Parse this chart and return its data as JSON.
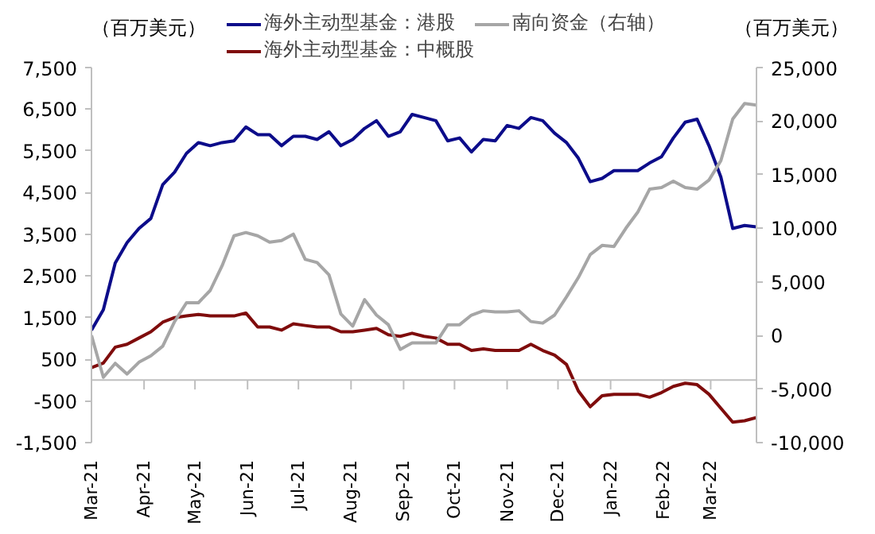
{
  "chart_data": {
    "type": "line",
    "ylabel": "（百万美元）",
    "y2label": "（百万美元）",
    "x": [
      "2021-03-01",
      "2021-03-08",
      "2021-03-15",
      "2021-03-22",
      "2021-03-29",
      "2021-04-05",
      "2021-04-12",
      "2021-04-19",
      "2021-04-26",
      "2021-05-03",
      "2021-05-10",
      "2021-05-17",
      "2021-05-24",
      "2021-05-31",
      "2021-06-07",
      "2021-06-14",
      "2021-06-21",
      "2021-06-28",
      "2021-07-05",
      "2021-07-12",
      "2021-07-19",
      "2021-07-26",
      "2021-08-02",
      "2021-08-09",
      "2021-08-16",
      "2021-08-23",
      "2021-08-30",
      "2021-09-06",
      "2021-09-13",
      "2021-09-20",
      "2021-09-27",
      "2021-10-04",
      "2021-10-11",
      "2021-10-18",
      "2021-10-25",
      "2021-11-01",
      "2021-11-08",
      "2021-11-15",
      "2021-11-22",
      "2021-11-29",
      "2021-12-06",
      "2021-12-13",
      "2021-12-20",
      "2021-12-27",
      "2022-01-03",
      "2022-01-10",
      "2022-01-17",
      "2022-01-24",
      "2022-01-31",
      "2022-02-07",
      "2022-02-14",
      "2022-02-21",
      "2022-02-28",
      "2022-03-07",
      "2022-03-14",
      "2022-03-21",
      "2022-03-28"
    ],
    "series": [
      {
        "name": "海外主动型基金：港股",
        "color": "#0c0c8a",
        "values": [
          1200,
          1690,
          2810,
          3300,
          3640,
          3880,
          4690,
          4990,
          5440,
          5700,
          5625,
          5700,
          5740,
          6075,
          5890,
          5890,
          5625,
          5850,
          5850,
          5775,
          5960,
          5625,
          5775,
          6040,
          6225,
          5850,
          5960,
          6375,
          6300,
          6225,
          5740,
          5810,
          5475,
          5775,
          5740,
          6110,
          6040,
          6300,
          6225,
          5925,
          5700,
          5325,
          4760,
          4840,
          5025,
          5025,
          5025,
          5210,
          5360,
          5810,
          6190,
          6260,
          5625,
          4875,
          3640,
          3710,
          3675
        ]
      },
      {
        "name": "海外主动型基金：中概股",
        "color": "#7f0c0c",
        "values": [
          300,
          410,
          790,
          860,
          1010,
          1160,
          1390,
          1500,
          1540,
          1575,
          1540,
          1540,
          1540,
          1610,
          1275,
          1275,
          1200,
          1350,
          1310,
          1275,
          1275,
          1160,
          1160,
          1200,
          1240,
          1090,
          1050,
          1125,
          1050,
          1010,
          860,
          860,
          710,
          750,
          710,
          710,
          710,
          860,
          710,
          600,
          375,
          -260,
          -640,
          -375,
          -340,
          -340,
          -340,
          -410,
          -300,
          -150,
          -75,
          -110,
          -340,
          -675,
          -1010,
          -975,
          -900
        ]
      },
      {
        "name": "南向资金（右轴）",
        "color": "#a6a6a6",
        "axis": "y2",
        "values": [
          0,
          -3900,
          -2600,
          -3600,
          -2500,
          -1900,
          -1000,
          1300,
          3050,
          3050,
          4200,
          6500,
          9300,
          9600,
          9300,
          8700,
          8850,
          9450,
          7100,
          6800,
          5650,
          2000,
          870,
          3340,
          1900,
          1000,
          -1300,
          -700,
          -700,
          -700,
          1000,
          1000,
          1900,
          2300,
          2200,
          2200,
          2300,
          1300,
          1150,
          1900,
          3600,
          5400,
          7550,
          8400,
          8300,
          10000,
          11500,
          13650,
          13800,
          14400,
          13800,
          13650,
          14500,
          16300,
          20200,
          21650,
          21500
        ]
      }
    ],
    "xlim": [
      "2021-03-01",
      "2022-03-28"
    ],
    "xticks": [
      {
        "value": "2021-03-01",
        "label": "Mar-21"
      },
      {
        "value": "2021-04-01",
        "label": "Apr-21"
      },
      {
        "value": "2021-05-01",
        "label": "May-21"
      },
      {
        "value": "2021-06-01",
        "label": "Jun-21"
      },
      {
        "value": "2021-07-01",
        "label": "Jul-21"
      },
      {
        "value": "2021-08-01",
        "label": "Aug-21"
      },
      {
        "value": "2021-09-01",
        "label": "Sep-21"
      },
      {
        "value": "2021-10-01",
        "label": "Oct-21"
      },
      {
        "value": "2021-11-01",
        "label": "Nov-21"
      },
      {
        "value": "2021-12-01",
        "label": "Dec-21"
      },
      {
        "value": "2022-01-01",
        "label": "Jan-22"
      },
      {
        "value": "2022-02-01",
        "label": "Feb-22"
      },
      {
        "value": "2022-03-01",
        "label": "Mar-22"
      }
    ],
    "ylim": [
      -1500,
      7500
    ],
    "yticks": [
      {
        "value": -1500,
        "label": "-1,500"
      },
      {
        "value": -500,
        "label": "-500"
      },
      {
        "value": 500,
        "label": "500"
      },
      {
        "value": 1500,
        "label": "1,500"
      },
      {
        "value": 2500,
        "label": "2,500"
      },
      {
        "value": 3500,
        "label": "3,500"
      },
      {
        "value": 4500,
        "label": "4,500"
      },
      {
        "value": 5500,
        "label": "5,500"
      },
      {
        "value": 6500,
        "label": "6,500"
      },
      {
        "value": 7500,
        "label": "7,500"
      }
    ],
    "y2lim": [
      -10000,
      25000
    ],
    "y2ticks": [
      {
        "value": -10000,
        "label": "-10,000"
      },
      {
        "value": -5000,
        "label": "-5,000"
      },
      {
        "value": 0,
        "label": "0"
      },
      {
        "value": 5000,
        "label": "5,000"
      },
      {
        "value": 10000,
        "label": "10,000"
      },
      {
        "value": 15000,
        "label": "15,000"
      },
      {
        "value": 20000,
        "label": "20,000"
      },
      {
        "value": 25000,
        "label": "25,000"
      }
    ],
    "legend": "top",
    "grid": false,
    "marker": "none",
    "line_style": "solid"
  }
}
